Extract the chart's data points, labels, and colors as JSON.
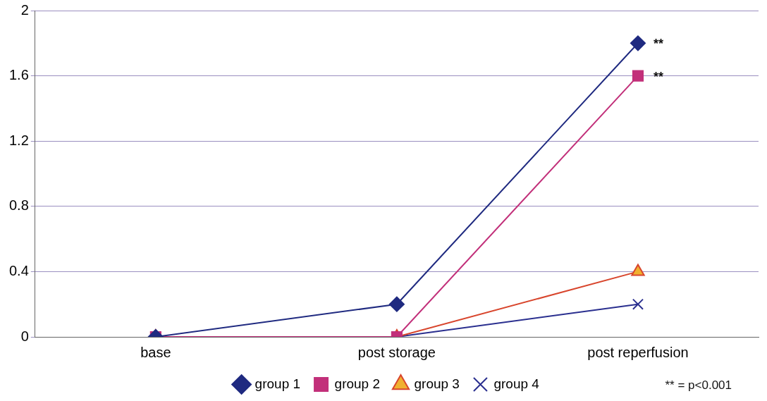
{
  "chart_data": {
    "type": "line",
    "categories": [
      "base",
      "post storage",
      "post reperfusion"
    ],
    "series": [
      {
        "name": "group 1",
        "color": "#1f2a80",
        "marker": "diamond",
        "values": [
          0,
          0.2,
          1.8
        ]
      },
      {
        "name": "group 2",
        "color": "#c2307a",
        "marker": "square",
        "values": [
          0,
          0,
          1.6
        ]
      },
      {
        "name": "group 3",
        "color": "#d8452c",
        "marker": "triangle",
        "values": [
          0,
          0,
          0.4
        ]
      },
      {
        "name": "group 4",
        "color": "#2a2f8f",
        "marker": "cross",
        "values": [
          0,
          0,
          0.2
        ]
      }
    ],
    "ylim": [
      0,
      2
    ],
    "yticks": [
      0,
      0.4,
      0.8,
      1.2,
      1.6,
      2
    ],
    "grid": "y",
    "legend": "bottom",
    "line_style": "solid",
    "annotations": [
      {
        "text": "**",
        "x": "post reperfusion",
        "y": 1.8
      },
      {
        "text": "**",
        "x": "post reperfusion",
        "y": 1.6
      },
      "** = p<0.001"
    ]
  }
}
